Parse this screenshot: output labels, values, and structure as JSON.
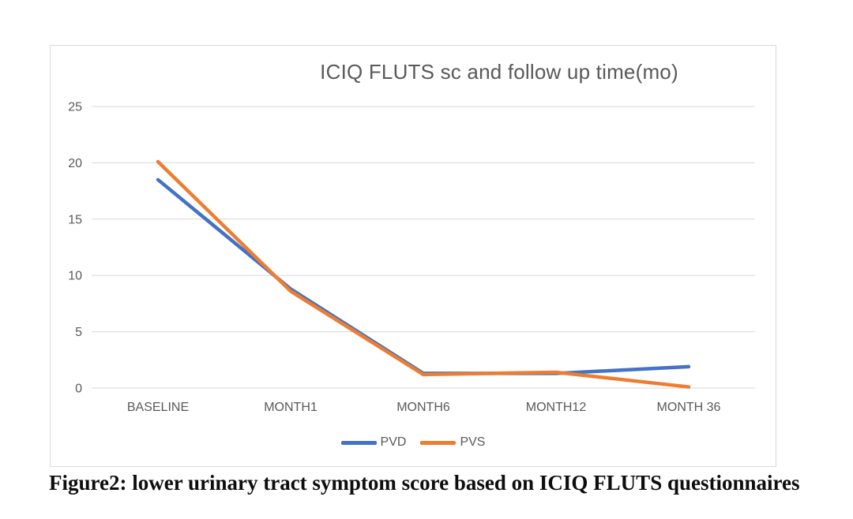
{
  "caption": "Figure2: lower urinary tract symptom score based on ICIQ FLUTS questionnaires",
  "colors": {
    "pvd_line": "#4472C4",
    "pvs_line": "#ED7D31",
    "gridline": "#d9d9d9",
    "axis_text": "#595959",
    "chart_border": "#d9d9d9",
    "caption_text": "#0d0d0d"
  },
  "chart_data": {
    "type": "line",
    "title": "ICIQ FLUTS sc and follow up time(mo)",
    "categories": [
      "BASELINE",
      "MONTH1",
      "MONTH6",
      "MONTH12",
      "MONTH 36"
    ],
    "series": [
      {
        "name": "PVD",
        "color": "#4472C4",
        "values": [
          18.5,
          8.8,
          1.3,
          1.3,
          1.9
        ]
      },
      {
        "name": "PVS",
        "color": "#ED7D31",
        "values": [
          20.1,
          8.6,
          1.2,
          1.4,
          0.1
        ]
      }
    ],
    "y_ticks": [
      0,
      5,
      10,
      15,
      20,
      25
    ],
    "ylim": [
      0,
      25
    ],
    "grid": true,
    "legend_position": "bottom"
  }
}
